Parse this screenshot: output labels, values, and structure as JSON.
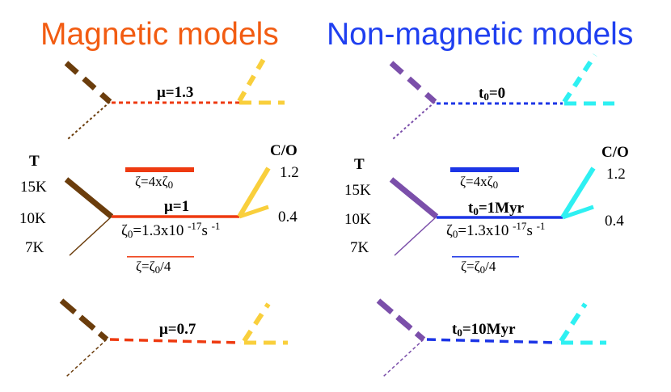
{
  "titles": {
    "magnetic": "Magnetic models",
    "non_magnetic": "Non-magnetic models"
  },
  "colors": {
    "magnetic_title": "#f25c12",
    "non_magnetic_title": "#1f3ff0",
    "magnetic_line": "#ee3a10",
    "non_magnetic_line": "#1c35e6",
    "temp_magnetic": "#6b3d0c",
    "temp_non_magnetic": "#7b4faa",
    "co_magnetic": "#f9cf3c",
    "co_non_magnetic": "#2ef0f2"
  },
  "temperature": {
    "header": "T",
    "values": [
      "15K",
      "10K",
      "7K"
    ]
  },
  "carbon_oxygen": {
    "header": "C/O",
    "values": [
      "1.2",
      "0.4"
    ]
  },
  "zeta_high": "ζ=4xζ",
  "zeta_high_sub": "0",
  "zeta_base_prefix": "ζ",
  "zeta_base_sub": "0",
  "zeta_base_mid": "=1.3x10",
  "zeta_base_exp1": "-17",
  "zeta_base_unit": "s",
  "zeta_base_exp2": "-1",
  "zeta_low_prefix": "ζ=ζ",
  "zeta_low_sub": "0",
  "zeta_low_suffix": "/4",
  "magnetic": {
    "top": "μ=1.3",
    "middle": "μ=1",
    "bottom": "μ=0.7"
  },
  "non_magnetic": {
    "t_sym": "t",
    "t_sub": "0",
    "top": "=0",
    "middle": "=1Myr",
    "bottom": "=10Myr"
  }
}
